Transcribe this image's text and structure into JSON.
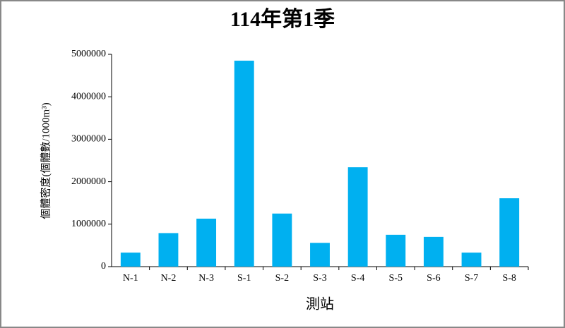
{
  "chart_data": {
    "type": "bar",
    "title": "114年第1季",
    "x_label": "測站",
    "y_label": "個體密度(個體數/1000m³)",
    "categories": [
      "N-1",
      "N-2",
      "N-3",
      "S-1",
      "S-2",
      "S-3",
      "S-4",
      "S-5",
      "S-6",
      "S-7",
      "S-8"
    ],
    "values": [
      330000,
      790000,
      1130000,
      4850000,
      1250000,
      560000,
      2340000,
      750000,
      700000,
      330000,
      1610000
    ],
    "color": "#00b0f0",
    "ylim": [
      0,
      5000000
    ],
    "yticks": [
      0,
      1000000,
      2000000,
      3000000,
      4000000,
      5000000
    ],
    "grid": false
  }
}
